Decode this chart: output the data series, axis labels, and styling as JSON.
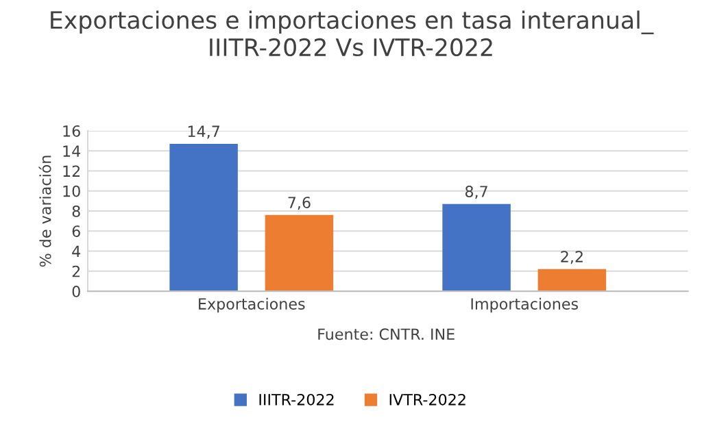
{
  "chart_data": {
    "type": "bar",
    "title": "Exportaciones e importaciones en tasa interanual_ IIITR-2022 Vs IVTR-2022",
    "ylabel": "% de variación",
    "categories": [
      "Exportaciones",
      "Importaciones"
    ],
    "series": [
      {
        "name": "IIITR-2022",
        "color": "#4472c4",
        "values": [
          14.7,
          8.7
        ],
        "value_labels": [
          "14,7",
          "8,7"
        ]
      },
      {
        "name": "IVTR-2022",
        "color": "#ed7d31",
        "values": [
          7.6,
          2.2
        ],
        "value_labels": [
          "7,6",
          "2,2"
        ]
      }
    ],
    "ylim": [
      0,
      16
    ],
    "yticks": [
      0,
      2,
      4,
      6,
      8,
      10,
      12,
      14,
      16
    ],
    "grid": "y",
    "legend": "bottom",
    "annotations": [
      "Fuente: CNTR. INE"
    ]
  }
}
